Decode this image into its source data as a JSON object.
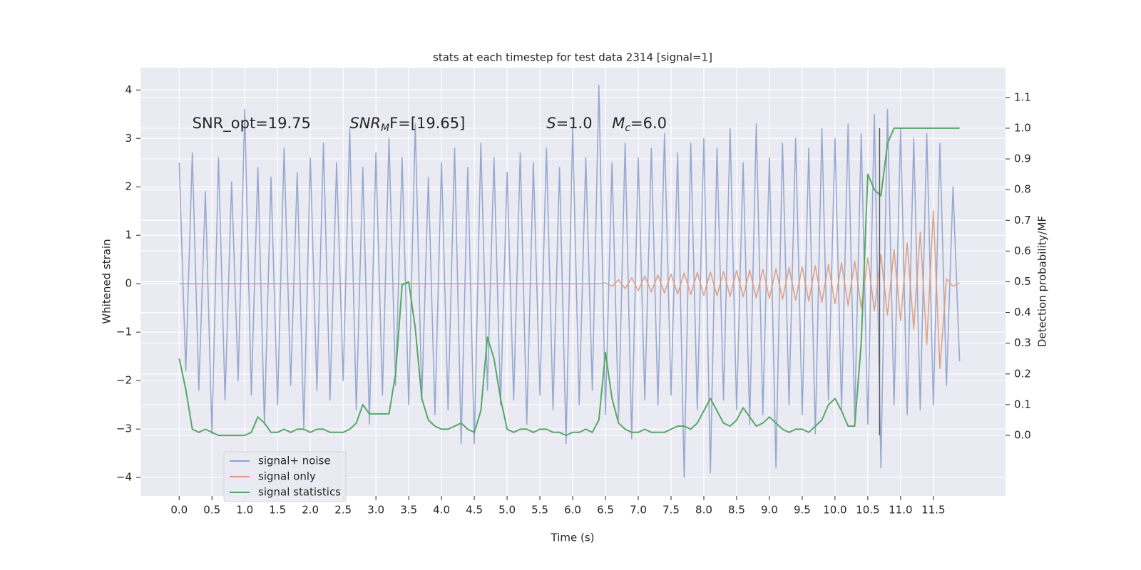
{
  "chart_data": {
    "type": "line",
    "title": "stats at each timestep for test data 2314 [signal=1]",
    "xlabel": "Time (s)",
    "ylabel": "Whitened strain",
    "y2label": "Detection probability/MF",
    "xlim": [
      -0.59,
      12.6
    ],
    "ylim": [
      -4.38,
      4.46
    ],
    "y2lim": [
      -0.197,
      1.197
    ],
    "grid": true,
    "legend": "lower left",
    "xticks": [
      {
        "value": 0,
        "label": "0.0"
      },
      {
        "value": 0.5,
        "label": "0.5"
      },
      {
        "value": 1,
        "label": "1.0"
      },
      {
        "value": 1.5,
        "label": "1.5"
      },
      {
        "value": 2,
        "label": "2.0"
      },
      {
        "value": 2.5,
        "label": "2.5"
      },
      {
        "value": 3,
        "label": "3.0"
      },
      {
        "value": 3.5,
        "label": "3.5"
      },
      {
        "value": 4,
        "label": "4.0"
      },
      {
        "value": 4.5,
        "label": "4.5"
      },
      {
        "value": 5,
        "label": "5.0"
      },
      {
        "value": 5.5,
        "label": "5.5"
      },
      {
        "value": 6,
        "label": "6.0"
      },
      {
        "value": 6.5,
        "label": "6.5"
      },
      {
        "value": 7,
        "label": "7.0"
      },
      {
        "value": 7.5,
        "label": "7.5"
      },
      {
        "value": 8,
        "label": "8.0"
      },
      {
        "value": 8.5,
        "label": "8.5"
      },
      {
        "value": 9,
        "label": "9.0"
      },
      {
        "value": 9.5,
        "label": "9.5"
      },
      {
        "value": 10,
        "label": "10.0"
      },
      {
        "value": 10.5,
        "label": "10.5"
      },
      {
        "value": 11,
        "label": "11.0"
      },
      {
        "value": 11.5,
        "label": "11.5"
      }
    ],
    "yticks": [
      {
        "value": -4,
        "label": "−4"
      },
      {
        "value": -3,
        "label": "−3"
      },
      {
        "value": -2,
        "label": "−2"
      },
      {
        "value": -1,
        "label": "−1"
      },
      0,
      1,
      2,
      3,
      4
    ],
    "y2ticks": [
      {
        "value": 0,
        "label": "0.0"
      },
      {
        "value": 0.1,
        "label": "0.1"
      },
      {
        "value": 0.2,
        "label": "0.2"
      },
      {
        "value": 0.3,
        "label": "0.3"
      },
      {
        "value": 0.4,
        "label": "0.4"
      },
      {
        "value": 0.5,
        "label": "0.5"
      },
      {
        "value": 0.6,
        "label": "0.6"
      },
      {
        "value": 0.7,
        "label": "0.7"
      },
      {
        "value": 0.8,
        "label": "0.8"
      },
      {
        "value": 0.9,
        "label": "0.9"
      },
      {
        "value": 1,
        "label": "1.0"
      },
      {
        "value": 1.1,
        "label": "1.1"
      }
    ],
    "annotations": [
      {
        "base": "SNR_opt=19.75",
        "x": 0.2,
        "y": 3.3,
        "italic": false
      },
      {
        "base": "SNR",
        "sub": "M",
        "tail": "F=[19.65]",
        "x": 2.6,
        "y": 3.3,
        "italic": true
      },
      {
        "base": "S",
        "tail": "=1.0",
        "x": 5.6,
        "y": 3.3,
        "italic": true
      },
      {
        "base": "M",
        "sub": "c",
        "tail": "=6.0",
        "x": 6.6,
        "y": 3.3,
        "italic": true
      }
    ],
    "vline": {
      "x": 10.68,
      "y2": [
        0,
        1
      ],
      "color": "#555555"
    },
    "x": [
      0.0,
      0.1,
      0.2,
      0.3,
      0.4,
      0.5,
      0.6,
      0.7,
      0.8,
      0.9,
      1.0,
      1.1,
      1.2,
      1.3,
      1.4,
      1.5,
      1.6,
      1.7,
      1.8,
      1.9,
      2.0,
      2.1,
      2.2,
      2.3,
      2.4,
      2.5,
      2.6,
      2.7,
      2.8,
      2.9,
      3.0,
      3.1,
      3.2,
      3.3,
      3.4,
      3.5,
      3.6,
      3.7,
      3.8,
      3.9,
      4.0,
      4.1,
      4.2,
      4.3,
      4.4,
      4.5,
      4.6,
      4.7,
      4.8,
      4.9,
      5.0,
      5.1,
      5.2,
      5.3,
      5.4,
      5.5,
      5.6,
      5.7,
      5.8,
      5.9,
      6.0,
      6.1,
      6.2,
      6.3,
      6.4,
      6.5,
      6.6,
      6.7,
      6.8,
      6.9,
      7.0,
      7.1,
      7.2,
      7.3,
      7.4,
      7.5,
      7.6,
      7.7,
      7.8,
      7.9,
      8.0,
      8.1,
      8.2,
      8.3,
      8.4,
      8.5,
      8.6,
      8.7,
      8.8,
      8.9,
      9.0,
      9.1,
      9.2,
      9.3,
      9.4,
      9.5,
      9.6,
      9.7,
      9.8,
      9.9,
      10.0,
      10.1,
      10.2,
      10.3,
      10.4,
      10.5,
      10.6,
      10.7,
      10.8,
      10.9,
      11.0,
      11.1,
      11.2,
      11.3,
      11.4,
      11.5,
      11.6,
      11.7,
      11.8,
      11.9
    ],
    "series": [
      {
        "name": "signal+ noise",
        "color": "#8ea2cc",
        "values": [
          2.5,
          -1.8,
          2.7,
          -2.2,
          1.9,
          -3.1,
          2.6,
          -2.4,
          2.1,
          -2.0,
          3.6,
          -2.3,
          2.4,
          -2.9,
          2.2,
          -2.5,
          2.8,
          -2.1,
          2.3,
          -3.0,
          2.6,
          -2.2,
          2.9,
          -2.4,
          2.5,
          -2.0,
          3.2,
          -2.6,
          2.4,
          -2.9,
          2.7,
          -2.3,
          3.0,
          -2.1,
          2.6,
          -2.5,
          3.3,
          -2.4,
          2.2,
          -2.7,
          2.5,
          -2.6,
          2.8,
          -3.3,
          2.4,
          -3.3,
          2.9,
          -2.2,
          2.6,
          -2.5,
          2.3,
          -2.4,
          2.7,
          -2.9,
          2.5,
          -2.3,
          2.8,
          -2.6,
          2.4,
          -3.3,
          3.2,
          -2.5,
          2.6,
          -2.2,
          4.1,
          -2.7,
          2.5,
          -2.8,
          2.9,
          -3.2,
          2.6,
          -2.4,
          2.8,
          -2.5,
          3.1,
          -2.3,
          2.7,
          -4.0,
          2.9,
          -2.6,
          3.0,
          -3.9,
          2.8,
          -2.4,
          3.2,
          -2.6,
          2.5,
          -2.9,
          3.3,
          -2.7,
          2.6,
          -3.8,
          2.9,
          -2.5,
          3.0,
          -2.7,
          2.8,
          -3.1,
          3.2,
          -2.4,
          3.0,
          -2.6,
          3.3,
          -2.8,
          3.1,
          -2.9,
          3.5,
          -3.8,
          3.6,
          -2.5,
          3.2,
          -2.7,
          3.0,
          -2.6,
          3.1,
          -2.5,
          2.9,
          -2.1,
          2.0,
          -1.6
        ]
      },
      {
        "name": "signal only",
        "color": "#dd9a7c",
        "values": [
          0,
          0,
          0,
          0,
          0,
          0,
          0,
          0,
          0,
          0,
          0,
          0,
          0,
          0,
          0,
          0,
          0,
          0,
          0,
          0,
          0,
          0,
          0,
          0,
          0,
          0,
          0,
          0,
          0,
          0,
          0,
          0,
          0,
          0,
          0,
          0,
          0,
          0,
          0,
          0,
          0,
          0,
          0,
          0,
          0,
          0,
          0,
          0,
          0,
          0,
          0,
          0,
          0,
          0,
          0,
          0,
          0,
          0,
          0,
          0,
          0,
          0,
          0,
          0,
          0,
          0.02,
          -0.05,
          0.08,
          -0.1,
          0.12,
          -0.14,
          0.16,
          -0.17,
          0.18,
          -0.19,
          0.2,
          -0.21,
          0.22,
          -0.22,
          0.23,
          -0.24,
          0.24,
          -0.25,
          0.25,
          -0.26,
          0.27,
          -0.27,
          0.28,
          -0.29,
          0.3,
          -0.3,
          0.31,
          -0.32,
          0.33,
          -0.34,
          0.35,
          -0.36,
          0.37,
          -0.38,
          0.4,
          -0.41,
          0.43,
          -0.45,
          0.47,
          -0.5,
          0.53,
          -0.56,
          0.6,
          -0.65,
          0.7,
          -0.76,
          0.84,
          -0.94,
          1.07,
          -1.25,
          1.5,
          -1.75,
          0.1,
          -0.05,
          0.02
        ]
      },
      {
        "name": "signal statistics",
        "color": "#55a868",
        "axis": "y2",
        "values": [
          0.25,
          0.15,
          0.02,
          0.01,
          0.02,
          0.01,
          0.0,
          0.0,
          0.0,
          0.0,
          0.0,
          0.01,
          0.06,
          0.04,
          0.01,
          0.01,
          0.02,
          0.01,
          0.02,
          0.02,
          0.01,
          0.02,
          0.02,
          0.01,
          0.01,
          0.01,
          0.02,
          0.04,
          0.1,
          0.07,
          0.07,
          0.07,
          0.07,
          0.2,
          0.49,
          0.5,
          0.35,
          0.12,
          0.05,
          0.03,
          0.02,
          0.02,
          0.03,
          0.04,
          0.02,
          0.01,
          0.08,
          0.32,
          0.25,
          0.12,
          0.02,
          0.01,
          0.02,
          0.02,
          0.01,
          0.02,
          0.02,
          0.01,
          0.01,
          0.0,
          0.01,
          0.01,
          0.02,
          0.01,
          0.05,
          0.27,
          0.12,
          0.04,
          0.02,
          0.01,
          0.01,
          0.02,
          0.01,
          0.01,
          0.01,
          0.02,
          0.03,
          0.03,
          0.02,
          0.04,
          0.08,
          0.12,
          0.08,
          0.04,
          0.03,
          0.05,
          0.09,
          0.06,
          0.03,
          0.04,
          0.06,
          0.04,
          0.02,
          0.01,
          0.02,
          0.02,
          0.01,
          0.03,
          0.05,
          0.1,
          0.12,
          0.08,
          0.03,
          0.03,
          0.3,
          0.85,
          0.8,
          0.78,
          0.95,
          1.0,
          1.0,
          1.0,
          1.0,
          1.0,
          1.0,
          1.0,
          1.0,
          1.0,
          1.0,
          1.0
        ]
      }
    ]
  }
}
